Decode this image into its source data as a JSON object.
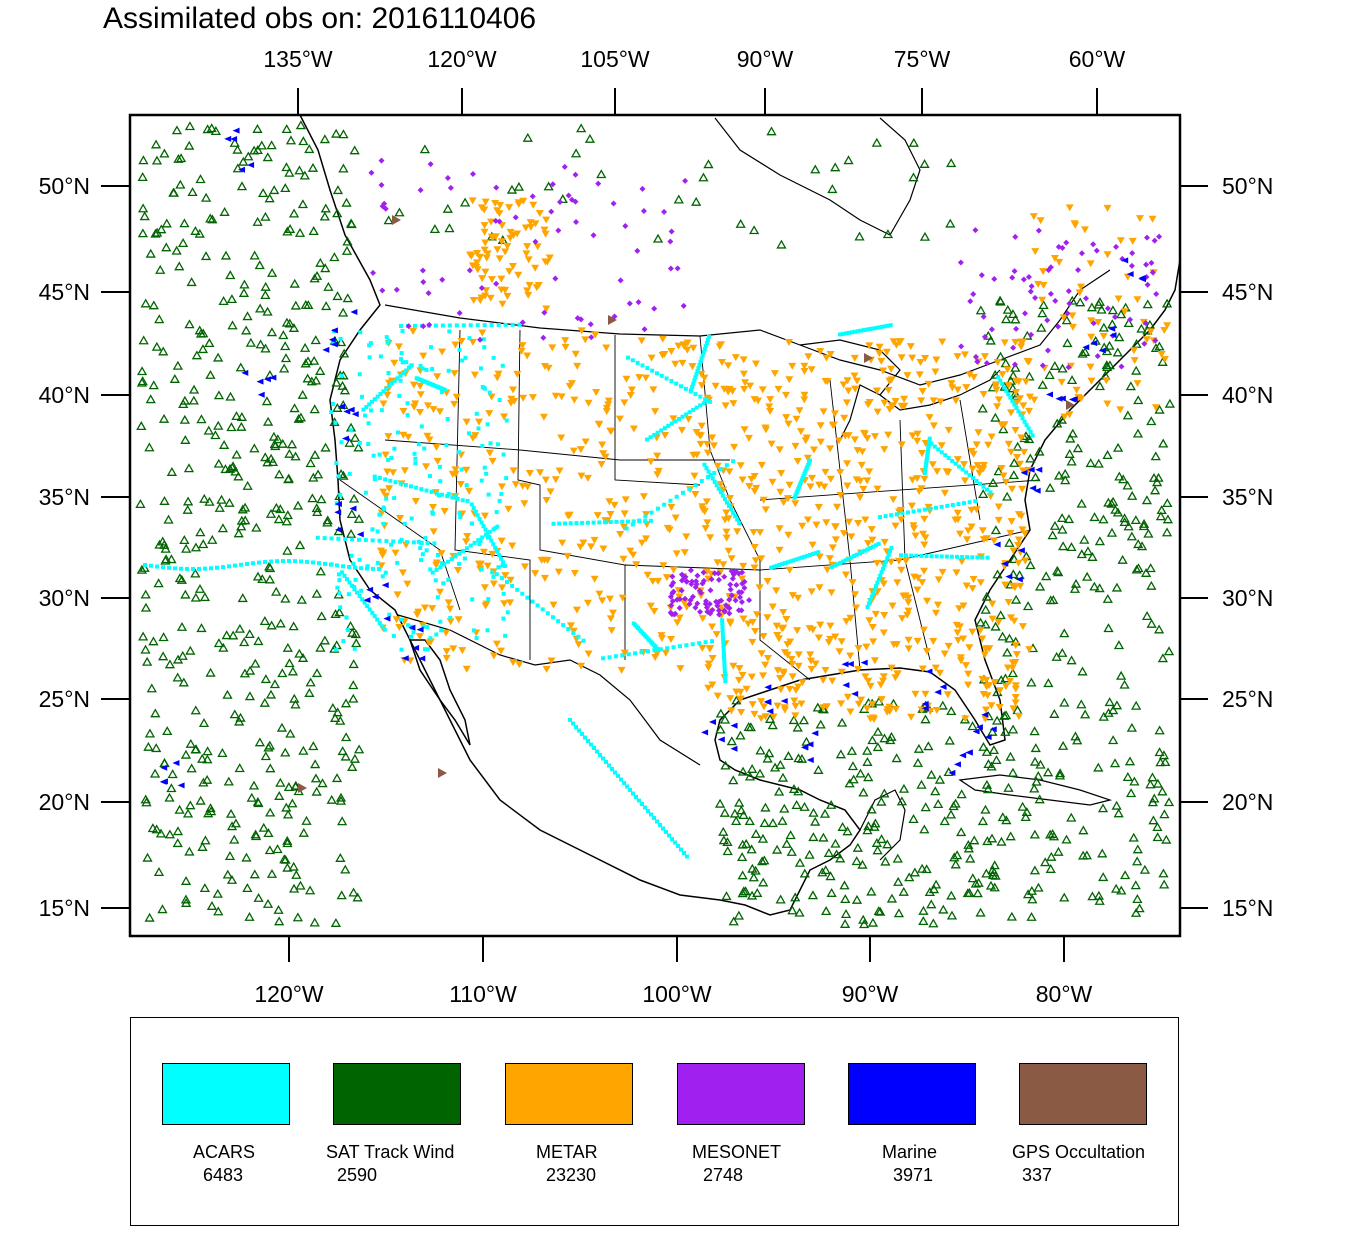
{
  "title": "Assimilated obs on: 2016110406",
  "map": {
    "top_lon_labels": [
      "135°W",
      "120°W",
      "105°W",
      "90°W",
      "75°W",
      "60°W"
    ],
    "bottom_lon_labels": [
      "120°W",
      "110°W",
      "100°W",
      "90°W",
      "80°W"
    ],
    "lat_labels": [
      "50°N",
      "45°N",
      "40°N",
      "35°N",
      "30°N",
      "25°N",
      "20°N",
      "15°N"
    ],
    "extent": {
      "lon_min": -128,
      "lon_max": -74,
      "lat_min": 14,
      "lat_max": 52
    }
  },
  "legend": [
    {
      "name": "ACARS",
      "count": "6483",
      "color": "#00ffff",
      "symbol": "square"
    },
    {
      "name": "SAT Track Wind",
      "count": "2590",
      "color": "#006400",
      "symbol": "triangle-up-open"
    },
    {
      "name": "METAR",
      "count": "23230",
      "color": "#ffa500",
      "symbol": "triangle-down"
    },
    {
      "name": "MESONET",
      "count": "2748",
      "color": "#a020f0",
      "symbol": "diamond"
    },
    {
      "name": "Marine",
      "count": "3971",
      "color": "#0000ff",
      "symbol": "triangle-left"
    },
    {
      "name": "GPS Occultation",
      "count": "337",
      "color": "#8b5a45",
      "symbol": "triangle-right"
    }
  ],
  "colors": {
    "background": "#ffffff",
    "coast": "#000000",
    "frame": "#000000"
  }
}
